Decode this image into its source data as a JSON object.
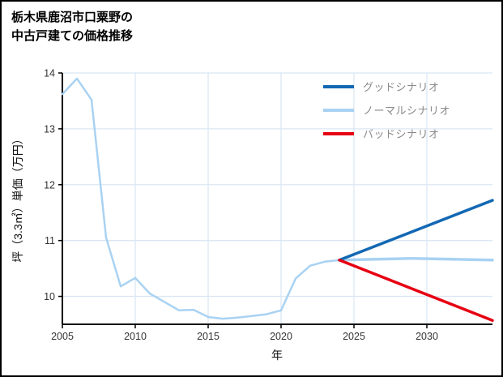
{
  "header": {
    "title_line1": "栃木県鹿沼市口粟野の",
    "title_line2": "中古戸建ての価格推移"
  },
  "chart_data": {
    "type": "line",
    "title": "栃木県鹿沼市口粟野の中古戸建ての価格推移",
    "xlabel": "年",
    "ylabel": "坪（3.3㎡）単価（万円）",
    "xlim": [
      2005,
      2034.5
    ],
    "ylim": [
      9.5,
      14
    ],
    "xticks": [
      2005,
      2010,
      2015,
      2020,
      2025,
      2030
    ],
    "yticks": [
      10,
      11,
      12,
      13,
      14
    ],
    "grid": true,
    "legend_position": "top-right",
    "colors": {
      "grid": "#dbe7f3",
      "axis": "#000000",
      "tick_label": "#333333",
      "legend_text": "#8a8a8a"
    },
    "history": {
      "color": "#a9d2f2",
      "width": 2.5,
      "x": [
        2005,
        2006,
        2007,
        2008,
        2009,
        2010,
        2011,
        2012,
        2013,
        2014,
        2015,
        2016,
        2017,
        2018,
        2019,
        2020,
        2021,
        2022,
        2023,
        2024
      ],
      "y": [
        13.62,
        13.9,
        13.52,
        11.05,
        10.18,
        10.33,
        10.05,
        9.9,
        9.75,
        9.76,
        9.63,
        9.6,
        9.62,
        9.65,
        9.68,
        9.75,
        10.32,
        10.55,
        10.62,
        10.65
      ]
    },
    "series": [
      {
        "name": "グッドシナリオ",
        "color": "#1268b3",
        "width": 3.5,
        "x": [
          2024,
          2034.5
        ],
        "y": [
          10.65,
          11.72
        ]
      },
      {
        "name": "ノーマルシナリオ",
        "color": "#a9d2f2",
        "width": 3.5,
        "x": [
          2024,
          2029,
          2034.5
        ],
        "y": [
          10.65,
          10.68,
          10.65
        ]
      },
      {
        "name": "バッドシナリオ",
        "color": "#e60012",
        "width": 3.5,
        "x": [
          2024,
          2034.5
        ],
        "y": [
          10.65,
          9.57
        ]
      }
    ]
  }
}
